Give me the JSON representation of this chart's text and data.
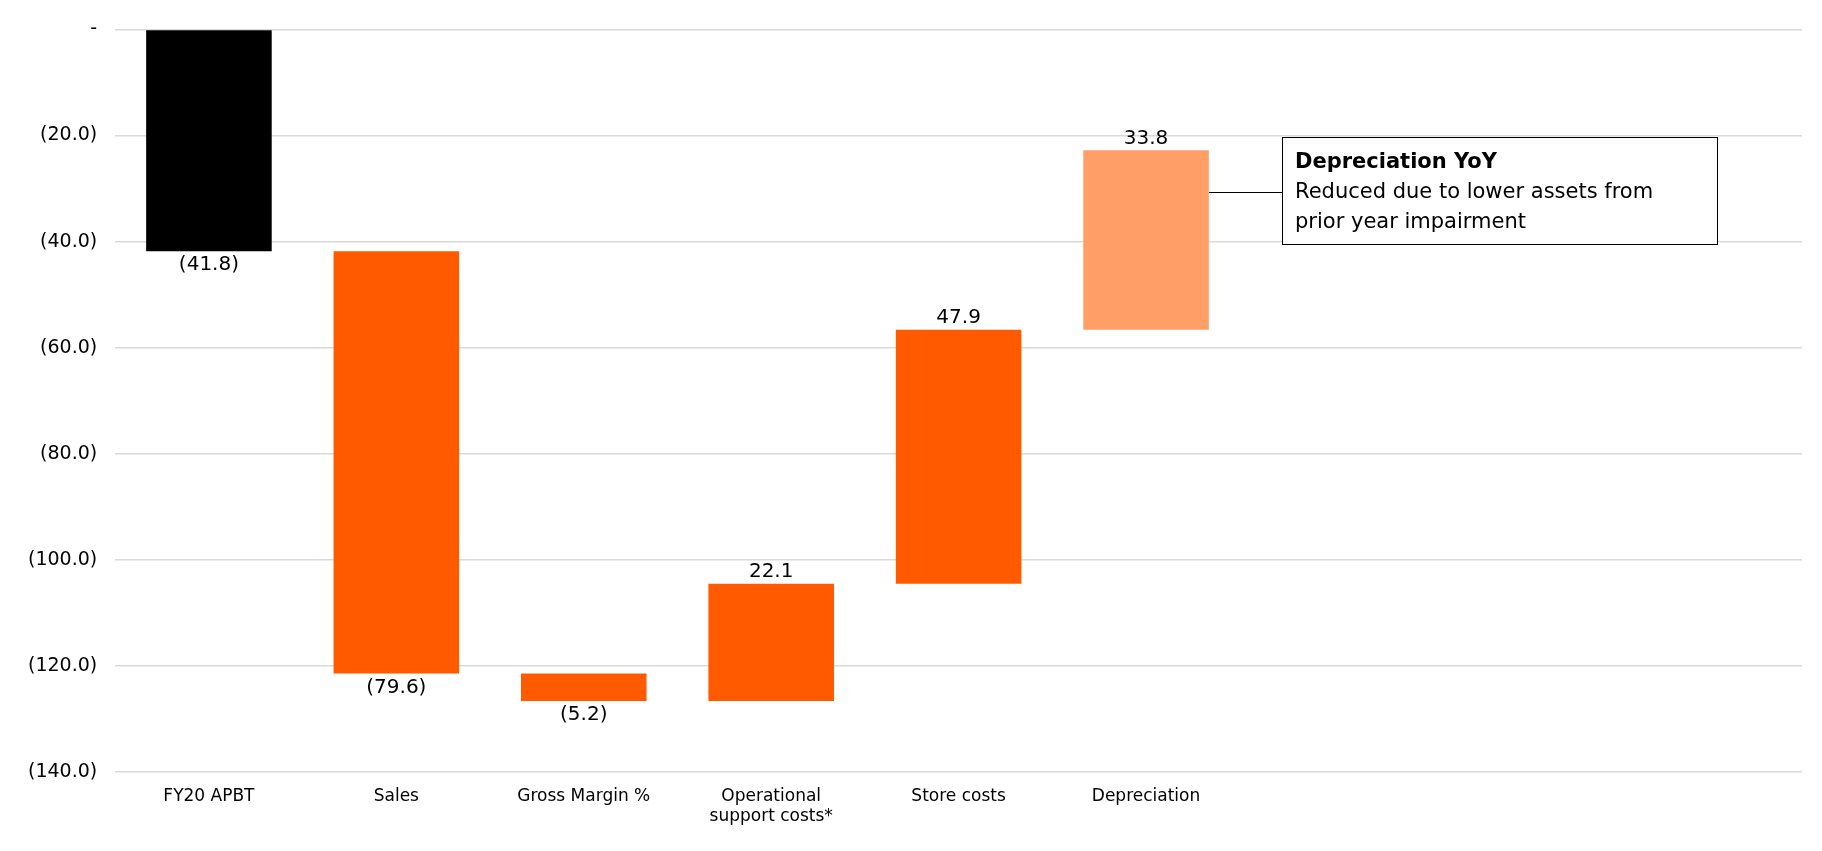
{
  "chart_data": {
    "type": "bar",
    "categories": [
      "FY20 APBT",
      "Sales",
      "Gross Margin %",
      "Operational support costs*",
      "Store costs",
      "Depreciation",
      null,
      null,
      null
    ],
    "values": [
      -41.8,
      -79.6,
      -5.2,
      22.1,
      47.9,
      33.8,
      null,
      null,
      null
    ],
    "base": [
      0,
      -41.8,
      -121.4,
      -126.6,
      -104.5,
      -56.6,
      null,
      null,
      null
    ],
    "colors": [
      "#000000",
      "#ff5a00",
      "#ff5a00",
      "#ff5a00",
      "#ff5a00",
      "#ff9e66",
      null,
      null,
      null
    ],
    "value_labels": [
      "(41.8)",
      "(79.6)",
      "(5.2)",
      "22.1",
      "47.9",
      "33.8",
      null,
      null,
      null
    ],
    "ylim": [
      -140,
      0
    ],
    "yticks": [
      {
        "value": 0,
        "label": "-"
      },
      {
        "value": -20,
        "label": "(20.0)"
      },
      {
        "value": -40,
        "label": "(40.0)"
      },
      {
        "value": -60,
        "label": "(60.0)"
      },
      {
        "value": -80,
        "label": "(80.0)"
      },
      {
        "value": -100,
        "label": "(100.0)"
      },
      {
        "value": -120,
        "label": "(120.0)"
      },
      {
        "value": -140,
        "label": "(140.0)"
      }
    ],
    "grid": "y",
    "annotations": [
      "Depreciation YoY",
      "Reduced due to lower assets from prior year impairment"
    ]
  }
}
